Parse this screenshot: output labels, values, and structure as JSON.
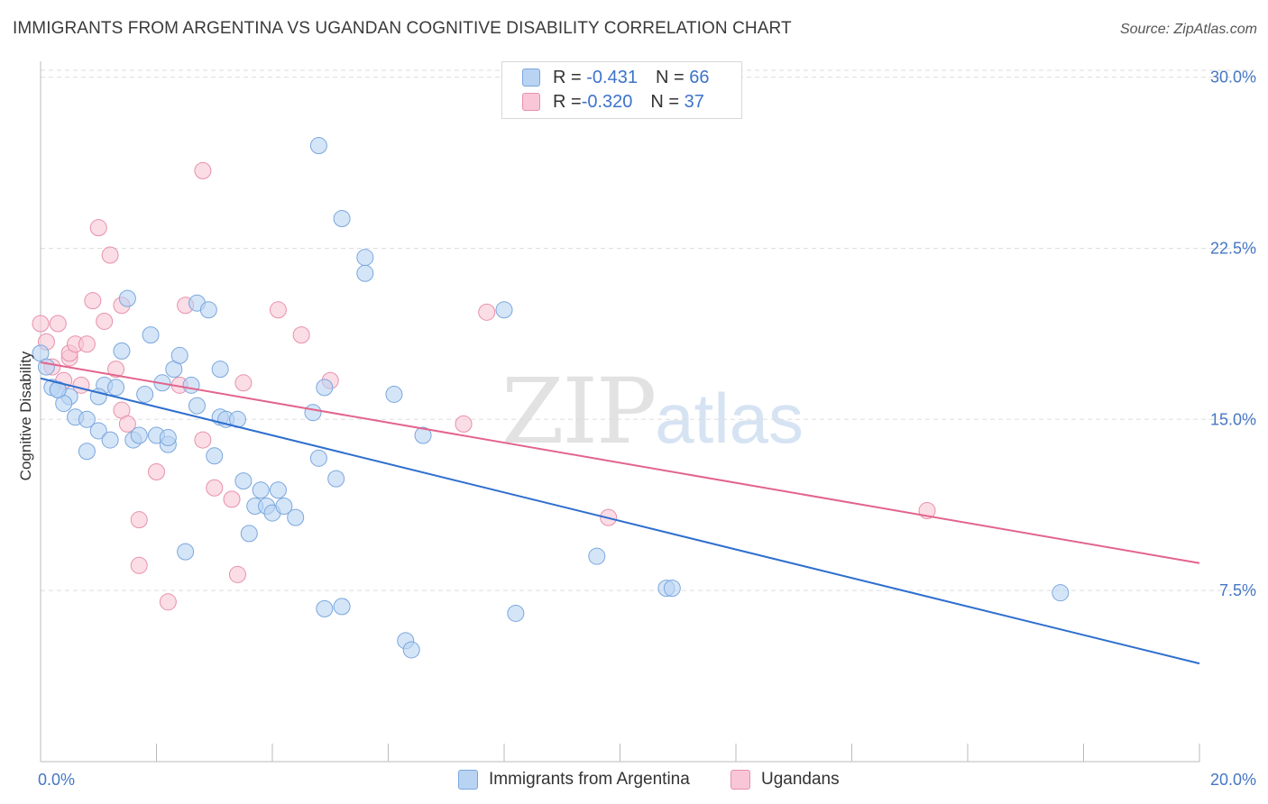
{
  "header": {
    "title": "IMMIGRANTS FROM ARGENTINA VS UGANDAN COGNITIVE DISABILITY CORRELATION CHART",
    "source": "Source: ZipAtlas.com"
  },
  "watermark": {
    "zip": "ZIP",
    "atlas": "atlas"
  },
  "legend": {
    "rows": [
      {
        "r_label": "R = ",
        "r_value": "-0.431",
        "n_label": "N = ",
        "n_value": "66"
      },
      {
        "r_label": "R = ",
        "r_value": "-0.320",
        "n_label": "N = ",
        "n_value": "37"
      }
    ]
  },
  "colors": {
    "blue_fill": "#b9d3f3",
    "blue_stroke": "#7aa7dd",
    "blue_line": "#2e6fce",
    "pink_fill": "#f8c6d6",
    "pink_stroke": "#e890ac",
    "pink_line": "#e2648c",
    "tick_text": "#4477c4",
    "grid": "#dddddd"
  },
  "chart_data": {
    "type": "scatter",
    "title": "IMMIGRANTS FROM ARGENTINA VS UGANDAN COGNITIVE DISABILITY CORRELATION CHART",
    "xlabel": "",
    "ylabel": "Cognitive Disability",
    "xlim": [
      0,
      20
    ],
    "ylim": [
      0,
      30.3
    ],
    "x_tick_labels": [
      {
        "value": 0,
        "label": "0.0%"
      },
      {
        "value": 20,
        "label": "20.0%"
      }
    ],
    "y_ticks": [
      {
        "value": 7.5,
        "label": "7.5%"
      },
      {
        "value": 15.0,
        "label": "15.0%"
      },
      {
        "value": 22.5,
        "label": "22.5%"
      },
      {
        "value": 30.0,
        "label": "30.0%"
      }
    ],
    "x_minor_ticks": [
      0,
      2,
      4,
      6,
      8,
      10,
      12,
      14,
      16,
      18,
      20
    ],
    "grid": true,
    "legend_position": "bottom",
    "series": [
      {
        "name": "Immigrants from Argentina",
        "color": "#7aa7dd",
        "trend": {
          "x": [
            0,
            20
          ],
          "y": [
            16.8,
            4.3
          ]
        },
        "points": [
          [
            0.0,
            17.9
          ],
          [
            0.1,
            17.3
          ],
          [
            0.2,
            16.4
          ],
          [
            0.3,
            16.3
          ],
          [
            0.5,
            16.0
          ],
          [
            0.4,
            15.7
          ],
          [
            0.6,
            15.1
          ],
          [
            0.8,
            15.0
          ],
          [
            1.0,
            14.5
          ],
          [
            0.8,
            13.6
          ],
          [
            1.1,
            16.5
          ],
          [
            1.3,
            16.4
          ],
          [
            1.4,
            18.0
          ],
          [
            1.5,
            20.3
          ],
          [
            1.6,
            14.1
          ],
          [
            1.7,
            14.3
          ],
          [
            1.8,
            16.1
          ],
          [
            1.9,
            18.7
          ],
          [
            2.0,
            14.3
          ],
          [
            2.1,
            16.6
          ],
          [
            2.2,
            13.9
          ],
          [
            2.2,
            14.2
          ],
          [
            2.3,
            17.2
          ],
          [
            2.4,
            17.8
          ],
          [
            2.6,
            16.5
          ],
          [
            2.7,
            15.6
          ],
          [
            2.7,
            20.1
          ],
          [
            2.9,
            19.8
          ],
          [
            3.0,
            13.4
          ],
          [
            3.1,
            17.2
          ],
          [
            3.1,
            15.1
          ],
          [
            3.2,
            15.0
          ],
          [
            3.4,
            15.0
          ],
          [
            3.5,
            12.3
          ],
          [
            3.6,
            10.0
          ],
          [
            3.7,
            11.2
          ],
          [
            3.8,
            11.9
          ],
          [
            3.9,
            11.2
          ],
          [
            4.0,
            10.9
          ],
          [
            4.1,
            11.9
          ],
          [
            4.2,
            11.2
          ],
          [
            4.4,
            10.7
          ],
          [
            4.7,
            15.3
          ],
          [
            4.8,
            13.3
          ],
          [
            4.9,
            16.4
          ],
          [
            5.1,
            12.4
          ],
          [
            4.8,
            27.0
          ],
          [
            5.2,
            23.8
          ],
          [
            5.6,
            21.4
          ],
          [
            5.6,
            22.1
          ],
          [
            6.1,
            16.1
          ],
          [
            6.6,
            14.3
          ],
          [
            8.0,
            19.8
          ],
          [
            9.6,
            9.0
          ],
          [
            10.8,
            7.6
          ],
          [
            10.9,
            7.6
          ],
          [
            17.6,
            7.4
          ],
          [
            2.5,
            9.2
          ],
          [
            4.9,
            6.7
          ],
          [
            5.2,
            6.8
          ],
          [
            6.3,
            5.3
          ],
          [
            6.4,
            4.9
          ],
          [
            8.2,
            6.5
          ],
          [
            0.3,
            16.3
          ],
          [
            1.0,
            16.0
          ],
          [
            1.2,
            14.1
          ]
        ]
      },
      {
        "name": "Ugandans",
        "color": "#e890ac",
        "trend": {
          "x": [
            0,
            20
          ],
          "y": [
            17.5,
            8.7
          ]
        },
        "points": [
          [
            0.0,
            19.2
          ],
          [
            0.1,
            18.4
          ],
          [
            0.2,
            17.3
          ],
          [
            0.3,
            19.2
          ],
          [
            0.4,
            16.7
          ],
          [
            0.5,
            17.7
          ],
          [
            0.5,
            17.9
          ],
          [
            0.6,
            18.3
          ],
          [
            0.7,
            16.5
          ],
          [
            0.8,
            18.3
          ],
          [
            0.9,
            20.2
          ],
          [
            1.0,
            23.4
          ],
          [
            1.1,
            19.3
          ],
          [
            1.2,
            22.2
          ],
          [
            1.3,
            17.2
          ],
          [
            1.4,
            15.4
          ],
          [
            1.4,
            20.0
          ],
          [
            1.5,
            14.8
          ],
          [
            1.7,
            8.6
          ],
          [
            1.7,
            10.6
          ],
          [
            2.0,
            12.7
          ],
          [
            2.2,
            7.0
          ],
          [
            2.4,
            16.5
          ],
          [
            2.5,
            20.0
          ],
          [
            2.8,
            14.1
          ],
          [
            2.8,
            25.9
          ],
          [
            3.0,
            12.0
          ],
          [
            3.3,
            11.5
          ],
          [
            3.4,
            8.2
          ],
          [
            3.5,
            16.6
          ],
          [
            4.1,
            19.8
          ],
          [
            4.5,
            18.7
          ],
          [
            5.0,
            16.7
          ],
          [
            7.3,
            14.8
          ],
          [
            7.7,
            19.7
          ],
          [
            9.8,
            10.7
          ],
          [
            15.3,
            11.0
          ]
        ]
      }
    ]
  },
  "bottom_legend": {
    "items": [
      {
        "label": "Immigrants from Argentina"
      },
      {
        "label": "Ugandans"
      }
    ]
  }
}
